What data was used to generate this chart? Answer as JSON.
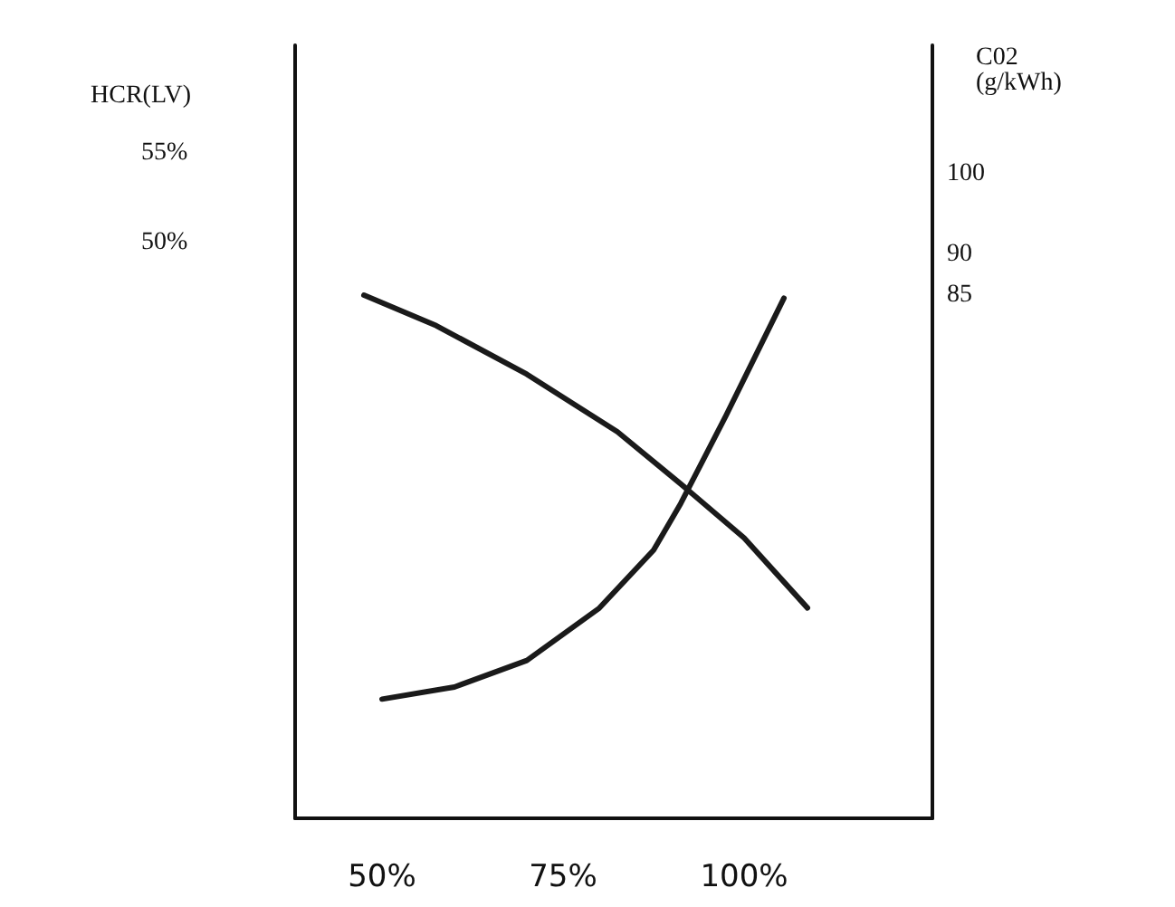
{
  "chart_data": {
    "type": "line",
    "ylabel": "HCR(LV)",
    "y2label": "C02\n(g/kWh)",
    "xlim": [
      38,
      126
    ],
    "xticks": [
      {
        "value": 50,
        "label": "50%"
      },
      {
        "value": 75,
        "label": "75%"
      },
      {
        "value": 100,
        "label": "100%"
      }
    ],
    "ylim": [
      18,
      61
    ],
    "yticks": [
      {
        "value": 50,
        "label": "50%"
      },
      {
        "value": 55,
        "label": "55%"
      }
    ],
    "y2lim": [
      20,
      116
    ],
    "y2ticks": [
      85,
      90,
      100
    ],
    "grid": false,
    "marker": "none",
    "line_style": "solid",
    "series": [
      {
        "color": "#1a1a1a",
        "x": [
          47.5,
          57.5,
          70,
          82.5,
          91.25,
          100,
          108.75
        ],
        "values": [
          47.1,
          45.4,
          42.7,
          39.5,
          36.6,
          33.6,
          29.7
        ]
      },
      {
        "color": "#1a1a1a",
        "axis": "y2",
        "x": [
          50,
          60,
          70,
          80,
          87.5,
          91.25,
          97.5,
          105.5
        ],
        "values": [
          34.8,
          36.3,
          39.6,
          46.1,
          53.3,
          59.1,
          70,
          84.6
        ]
      }
    ]
  }
}
